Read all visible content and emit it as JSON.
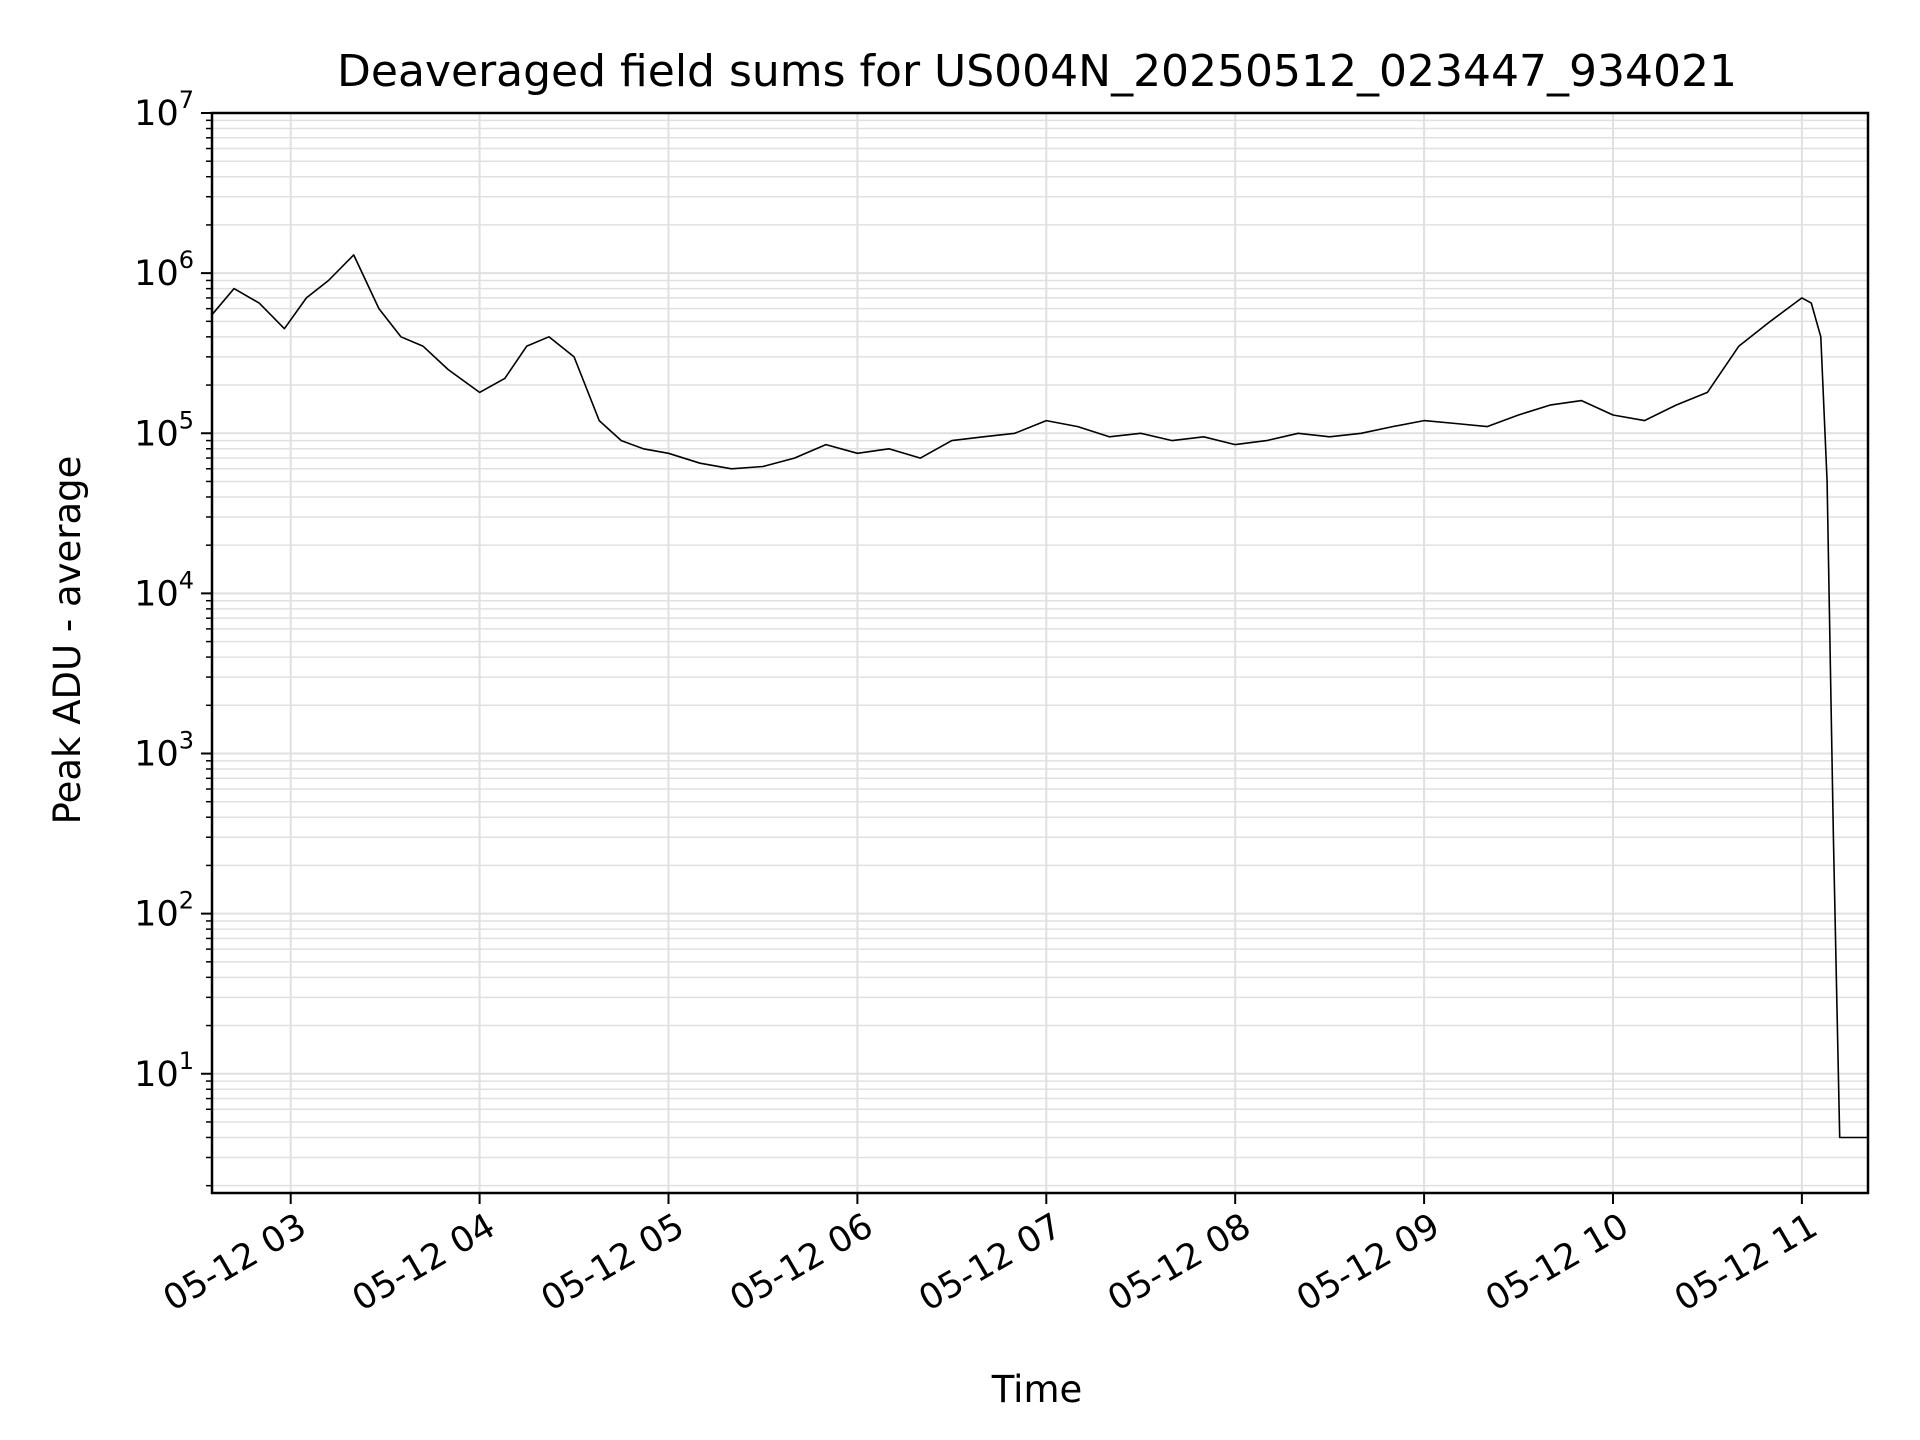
{
  "chart_data": {
    "type": "line",
    "title": "Deaveraged field sums for US004N_20250512_023447_934021",
    "xlabel": "Time",
    "ylabel": "Peak ADU - average",
    "yscale": "log",
    "ylim": [
      1.8,
      10000000
    ],
    "xlim": [
      "05-12 02:35",
      "05-12 11:21"
    ],
    "grid": true,
    "line_color": "#000000",
    "grid_color": "#e0e0e0",
    "x_ticks": [
      "05-12 03:00",
      "05-12 04:00",
      "05-12 05:00",
      "05-12 06:00",
      "05-12 07:00",
      "05-12 08:00",
      "05-12 09:00",
      "05-12 10:00",
      "05-12 11:00"
    ],
    "x_tick_labels": [
      "05-12 03",
      "05-12 04",
      "05-12 05",
      "05-12 06",
      "05-12 07",
      "05-12 08",
      "05-12 09",
      "05-12 10",
      "05-12 11"
    ],
    "y_ticks": [
      10,
      100,
      1000,
      10000,
      100000,
      1000000,
      10000000
    ],
    "y_tick_labels": [
      {
        "base": "10",
        "exp": "1"
      },
      {
        "base": "10",
        "exp": "2"
      },
      {
        "base": "10",
        "exp": "3"
      },
      {
        "base": "10",
        "exp": "4"
      },
      {
        "base": "10",
        "exp": "5"
      },
      {
        "base": "10",
        "exp": "6"
      },
      {
        "base": "10",
        "exp": "7"
      }
    ],
    "series": [
      {
        "x": [
          "05-12 02:35",
          "05-12 02:42",
          "05-12 02:50",
          "05-12 02:58",
          "05-12 03:05",
          "05-12 03:12",
          "05-12 03:20",
          "05-12 03:28",
          "05-12 03:35",
          "05-12 03:42",
          "05-12 03:50",
          "05-12 04:00",
          "05-12 04:08",
          "05-12 04:15",
          "05-12 04:22",
          "05-12 04:30",
          "05-12 04:38",
          "05-12 04:45",
          "05-12 04:52",
          "05-12 05:00",
          "05-12 05:10",
          "05-12 05:20",
          "05-12 05:30",
          "05-12 05:40",
          "05-12 05:50",
          "05-12 06:00",
          "05-12 06:10",
          "05-12 06:20",
          "05-12 06:30",
          "05-12 06:40",
          "05-12 06:50",
          "05-12 07:00",
          "05-12 07:10",
          "05-12 07:20",
          "05-12 07:30",
          "05-12 07:40",
          "05-12 07:50",
          "05-12 08:00",
          "05-12 08:10",
          "05-12 08:20",
          "05-12 08:30",
          "05-12 08:40",
          "05-12 08:50",
          "05-12 09:00",
          "05-12 09:10",
          "05-12 09:20",
          "05-12 09:30",
          "05-12 09:40",
          "05-12 09:50",
          "05-12 10:00",
          "05-12 10:10",
          "05-12 10:20",
          "05-12 10:30",
          "05-12 10:40",
          "05-12 10:50",
          "05-12 11:00",
          "05-12 11:03",
          "05-12 11:06",
          "05-12 11:08",
          "05-12 11:10",
          "05-12 11:12",
          "05-12 11:14",
          "05-12 11:21"
        ],
        "y": [
          550000,
          800000,
          650000,
          450000,
          700000,
          900000,
          1300000,
          600000,
          400000,
          350000,
          250000,
          180000,
          220000,
          350000,
          400000,
          300000,
          120000,
          90000,
          80000,
          75000,
          65000,
          60000,
          62000,
          70000,
          85000,
          75000,
          80000,
          70000,
          90000,
          95000,
          100000,
          120000,
          110000,
          95000,
          100000,
          90000,
          95000,
          85000,
          90000,
          100000,
          95000,
          100000,
          110000,
          120000,
          115000,
          110000,
          130000,
          150000,
          160000,
          130000,
          120000,
          150000,
          180000,
          350000,
          500000,
          700000,
          650000,
          400000,
          50000,
          300,
          4,
          4,
          4
        ]
      }
    ]
  }
}
